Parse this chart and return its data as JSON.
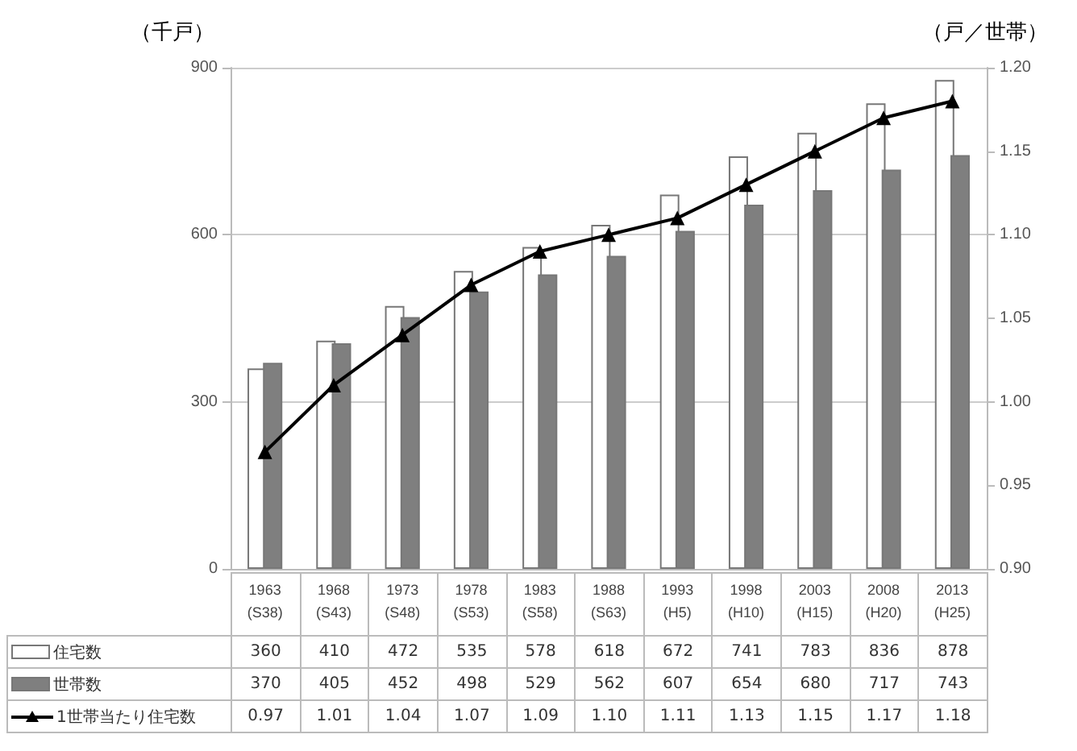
{
  "chart_data": {
    "type": "bar",
    "ylabel": "（千戸）",
    "y2label": "（戸／世帯）",
    "categories": [
      "1963\n(S38)",
      "1968\n(S43)",
      "1973\n(S48)",
      "1978\n(S53)",
      "1983\n(S58)",
      "1988\n(S63)",
      "1993\n(H5)",
      "1998\n(H10)",
      "2003\n(H15)",
      "2008\n(H20)",
      "2013\n(H25)"
    ],
    "ylim": [
      0,
      900
    ],
    "yticks": [
      0,
      300,
      600,
      900
    ],
    "y2lim": [
      0.9,
      1.2
    ],
    "y2ticks": [
      {
        "value": 0.9,
        "label": "0.90"
      },
      {
        "value": 0.95,
        "label": "0.95"
      },
      {
        "value": 1.0,
        "label": "1.00"
      },
      {
        "value": 1.05,
        "label": "1.05"
      },
      {
        "value": 1.1,
        "label": "1.10"
      },
      {
        "value": 1.15,
        "label": "1.15"
      },
      {
        "value": 1.2,
        "label": "1.20"
      }
    ],
    "grid": "y",
    "legend": "bottom left",
    "series": [
      {
        "name": "住宅数",
        "color": "#ffffff",
        "values": [
          360,
          410,
          472,
          535,
          578,
          618,
          672,
          741,
          783,
          836,
          878
        ],
        "value_labels": [
          "360",
          "410",
          "472",
          "535",
          "578",
          "618",
          "672",
          "741",
          "783",
          "836",
          "878"
        ]
      },
      {
        "name": "世帯数",
        "color": "#7f7f7f",
        "values": [
          370,
          405,
          452,
          498,
          529,
          562,
          607,
          654,
          680,
          717,
          743
        ],
        "value_labels": [
          "370",
          "405",
          "452",
          "498",
          "529",
          "562",
          "607",
          "654",
          "680",
          "717",
          "743"
        ]
      },
      {
        "name": "1世帯当たり住宅数",
        "type": "line",
        "axis": "y2",
        "color": "#000000",
        "marker": "triangle",
        "line_style": "solid",
        "values": [
          0.97,
          1.01,
          1.04,
          1.07,
          1.09,
          1.1,
          1.11,
          1.13,
          1.15,
          1.17,
          1.18
        ],
        "value_labels": [
          "0.97",
          "1.01",
          "1.04",
          "1.07",
          "1.09",
          "1.10",
          "1.11",
          "1.13",
          "1.15",
          "1.17",
          "1.18"
        ]
      }
    ]
  }
}
